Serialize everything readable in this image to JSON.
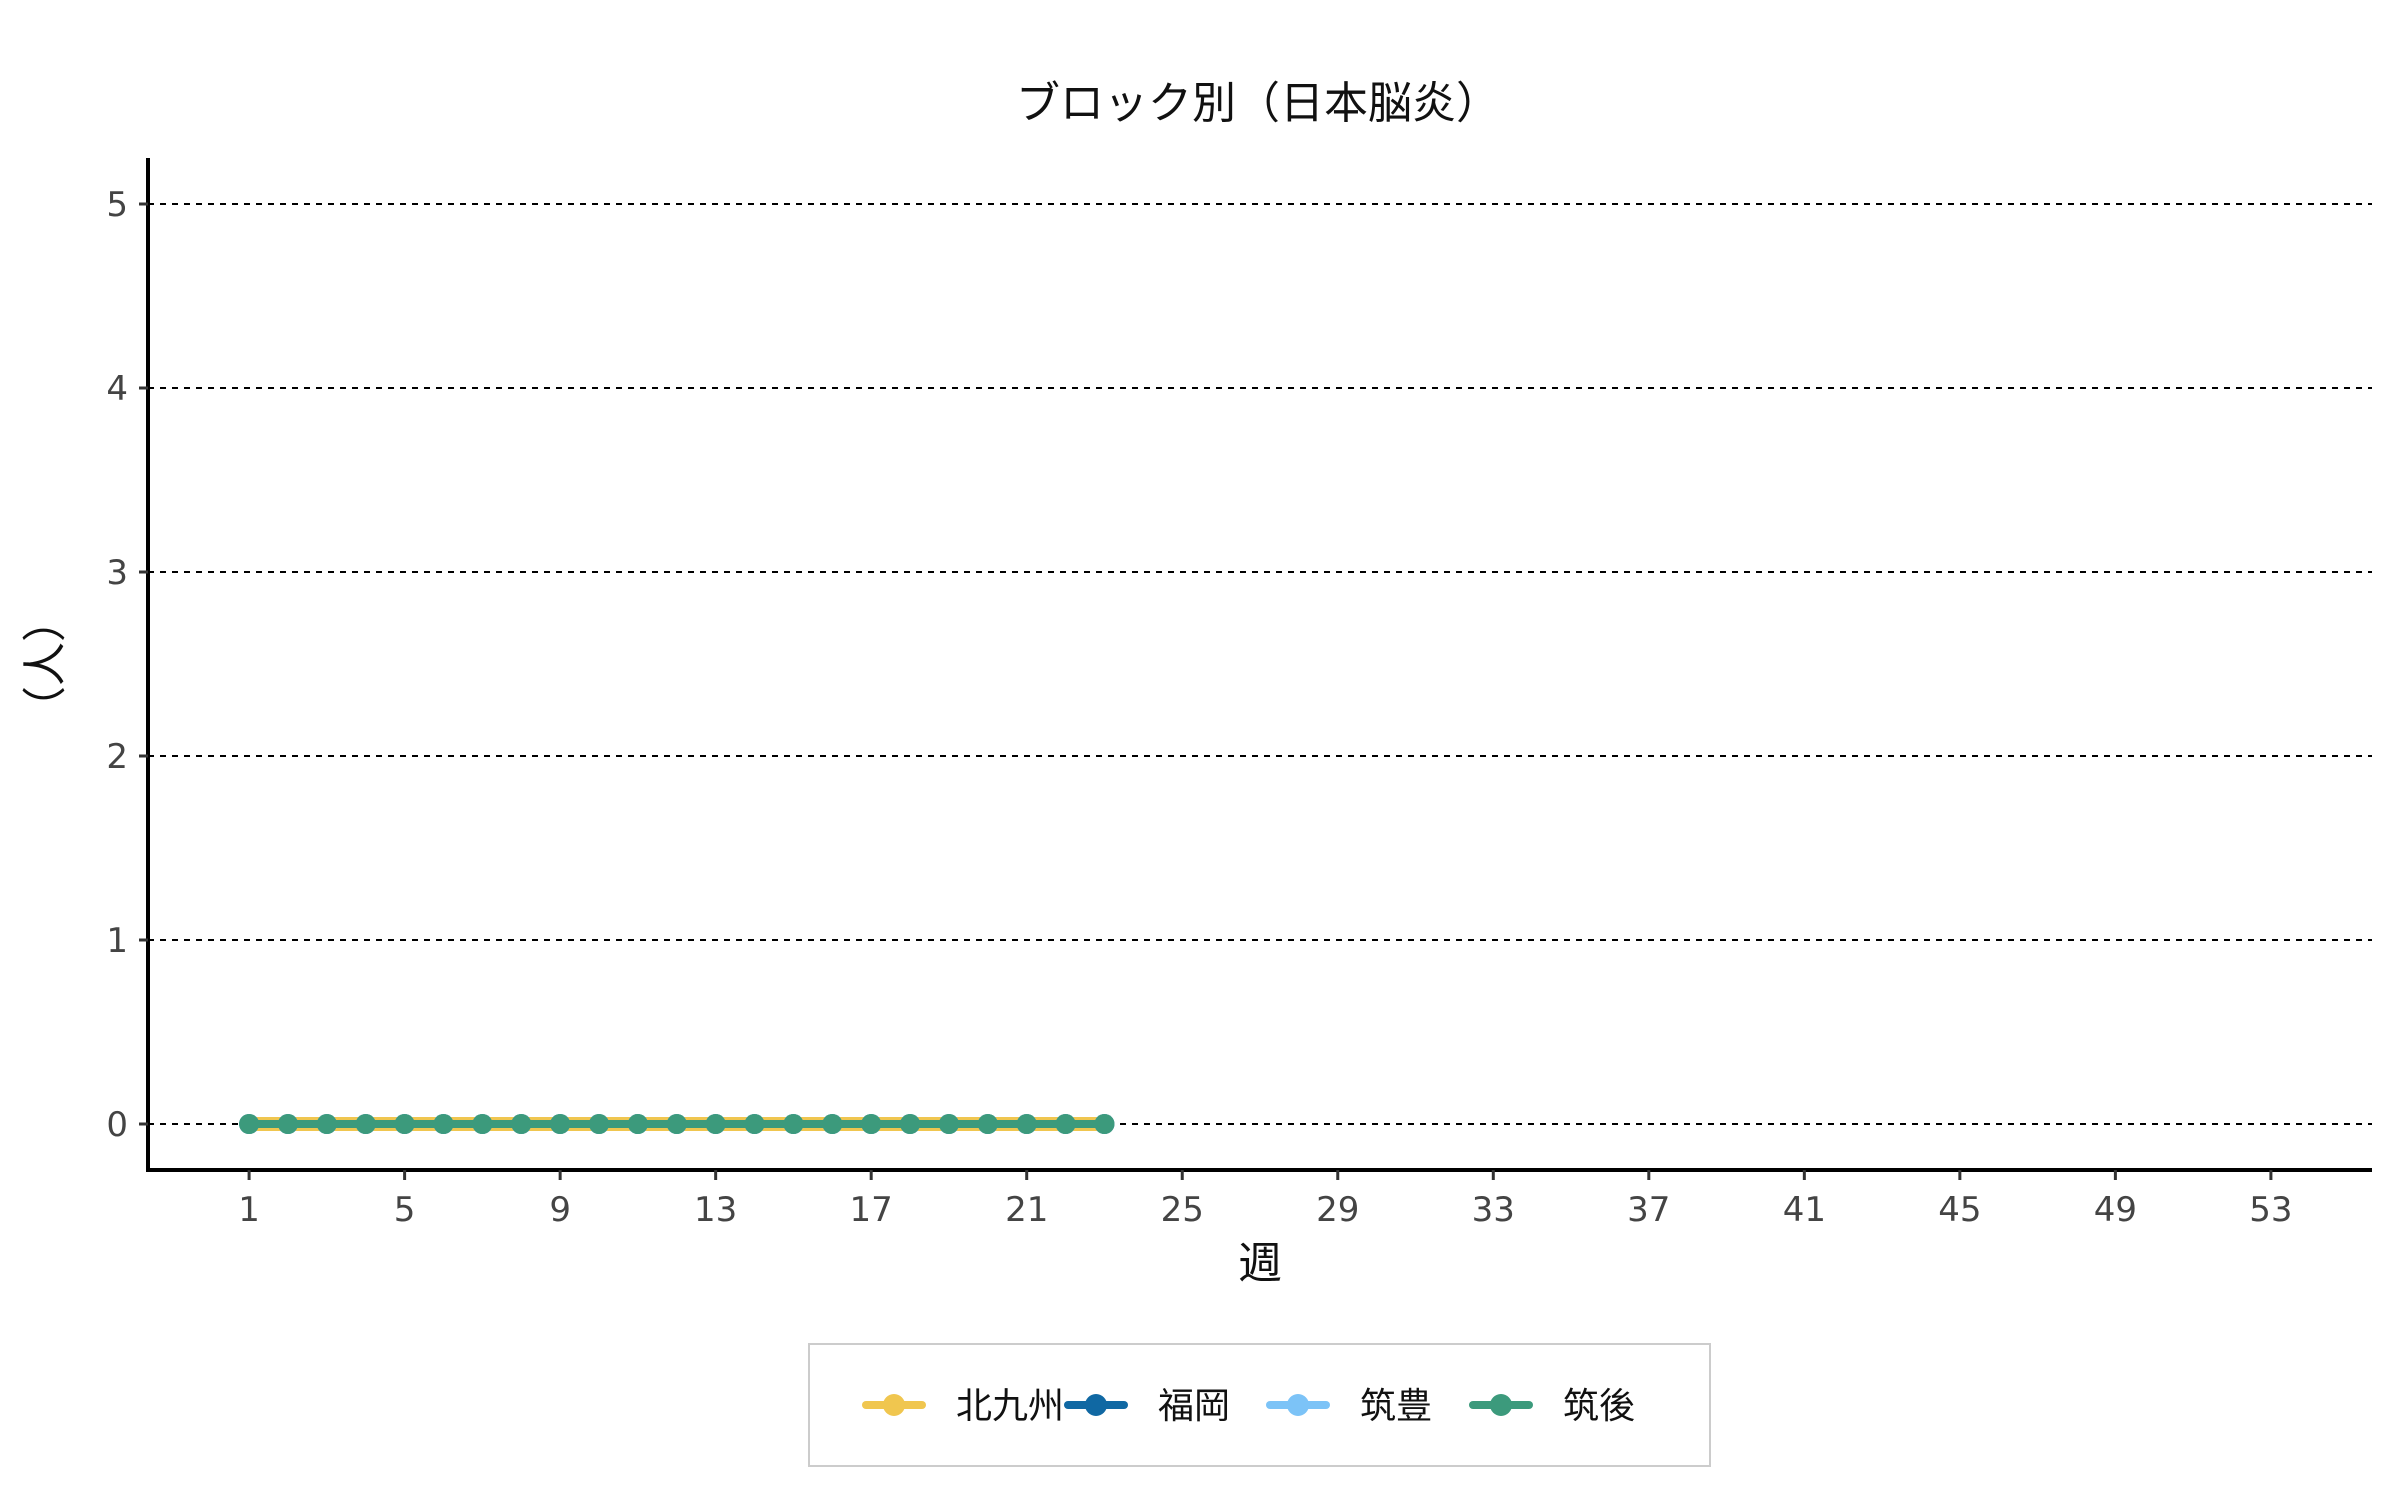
{
  "chart_data": {
    "type": "line",
    "title": "ブロック別（日本脳炎）",
    "xlabel": "週",
    "ylabel": "（人）",
    "x_ticks": [
      "1",
      "5",
      "9",
      "13",
      "17",
      "21",
      "25",
      "29",
      "33",
      "37",
      "41",
      "45",
      "49",
      "53"
    ],
    "y_ticks": [
      "0",
      "1",
      "2",
      "3",
      "4",
      "5"
    ],
    "xlim": [
      -1.6,
      55.6
    ],
    "ylim": [
      -0.25,
      5.25
    ],
    "grid": "horizontal-dashed",
    "legend_position": "bottom",
    "x": [
      1,
      2,
      3,
      4,
      5,
      6,
      7,
      8,
      9,
      10,
      11,
      12,
      13,
      14,
      15,
      16,
      17,
      18,
      19,
      20,
      21,
      22,
      23
    ],
    "series": [
      {
        "name": "北九州",
        "color": "#f0c64f",
        "values": [
          0,
          0,
          0,
          0,
          0,
          0,
          0,
          0,
          0,
          0,
          0,
          0,
          0,
          0,
          0,
          0,
          0,
          0,
          0,
          0,
          0,
          0,
          0
        ]
      },
      {
        "name": "福岡",
        "color": "#1068a3",
        "values": [
          0,
          0,
          0,
          0,
          0,
          0,
          0,
          0,
          0,
          0,
          0,
          0,
          0,
          0,
          0,
          0,
          0,
          0,
          0,
          0,
          0,
          0,
          0
        ]
      },
      {
        "name": "筑豊",
        "color": "#7cc3f7",
        "values": [
          0,
          0,
          0,
          0,
          0,
          0,
          0,
          0,
          0,
          0,
          0,
          0,
          0,
          0,
          0,
          0,
          0,
          0,
          0,
          0,
          0,
          0,
          0
        ]
      },
      {
        "name": "筑後",
        "color": "#3c9a7c",
        "values": [
          0,
          0,
          0,
          0,
          0,
          0,
          0,
          0,
          0,
          0,
          0,
          0,
          0,
          0,
          0,
          0,
          0,
          0,
          0,
          0,
          0,
          0,
          0
        ]
      }
    ]
  }
}
